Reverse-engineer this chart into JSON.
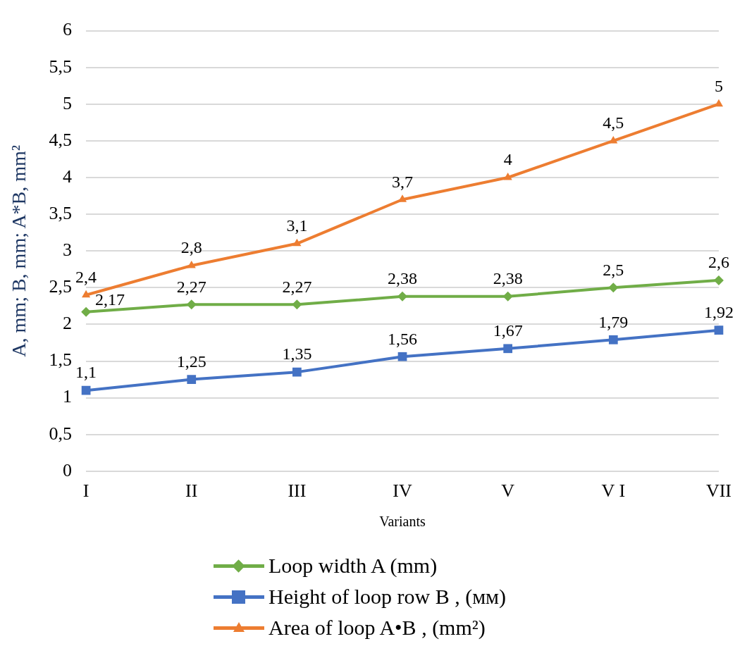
{
  "chart_data": {
    "type": "line",
    "xlabel": "Variants",
    "ylabel": "A, mm; B, mm; A*B, mm²",
    "categories": [
      "I",
      "II",
      "III",
      "IV",
      "V",
      "V I",
      "VII"
    ],
    "series": [
      {
        "name": "Loop width A  (mm)",
        "color": "#70ad47",
        "marker": "diamond",
        "values": [
          2.17,
          2.27,
          2.27,
          2.38,
          2.38,
          2.5,
          2.6
        ],
        "value_labels": [
          "2,17",
          "2,27",
          "2,27",
          "2,38",
          "2,38",
          "2,5",
          "2,6"
        ]
      },
      {
        "name": "Height of loop row B , (мм)",
        "color": "#4472c4",
        "marker": "square",
        "values": [
          1.1,
          1.25,
          1.35,
          1.56,
          1.67,
          1.79,
          1.92
        ],
        "value_labels": [
          "1,1",
          "1,25",
          "1,35",
          "1,56",
          "1,67",
          "1,79",
          "1,92"
        ]
      },
      {
        "name": "Area of loop A•B , (mm²)",
        "color": "#ed7d31",
        "marker": "triangle",
        "values": [
          2.4,
          2.8,
          3.1,
          3.7,
          4,
          4.5,
          5
        ],
        "value_labels": [
          "2,4",
          "2,8",
          "3,1",
          "3,7",
          "4",
          "4,5",
          "5"
        ]
      }
    ],
    "ylim": [
      0,
      6
    ],
    "yticks": [
      0,
      {
        "value": 0.5,
        "label": "0,5"
      },
      1,
      {
        "value": 1.5,
        "label": "1,5"
      },
      2,
      {
        "value": 2.5,
        "label": "2,5"
      },
      3,
      {
        "value": 3.5,
        "label": "3,5"
      },
      4,
      {
        "value": 4.5,
        "label": "4,5"
      },
      5,
      {
        "value": 5.5,
        "label": "5,5"
      },
      6
    ],
    "grid": "y",
    "legend": "bottom",
    "line_style": "solid"
  }
}
